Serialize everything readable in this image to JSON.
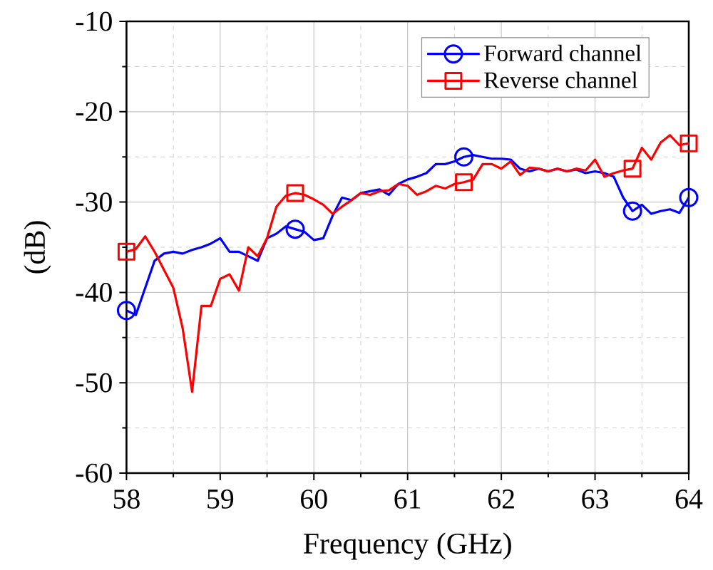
{
  "chart_data": {
    "type": "line",
    "xlabel": "Frequency (GHz)",
    "ylabel": "(dB)",
    "xlim": [
      58,
      64
    ],
    "ylim": [
      -60,
      -10
    ],
    "xticks": [
      58,
      59,
      60,
      61,
      62,
      63,
      64
    ],
    "yticks": [
      -60,
      -50,
      -40,
      -30,
      -20,
      -10
    ],
    "grid": true,
    "legend": "top right",
    "line_style": "solid",
    "x": [
      58.0,
      58.1,
      58.2,
      58.3,
      58.4,
      58.5,
      58.6,
      58.7,
      58.8,
      58.9,
      59.0,
      59.1,
      59.2,
      59.3,
      59.4,
      59.5,
      59.6,
      59.7,
      59.8,
      59.9,
      60.0,
      60.1,
      60.2,
      60.3,
      60.4,
      60.5,
      60.6,
      60.7,
      60.8,
      60.9,
      61.0,
      61.1,
      61.2,
      61.3,
      61.4,
      61.5,
      61.6,
      61.7,
      61.8,
      61.9,
      62.0,
      62.1,
      62.2,
      62.3,
      62.4,
      62.5,
      62.6,
      62.7,
      62.8,
      62.9,
      63.0,
      63.1,
      63.2,
      63.3,
      63.4,
      63.5,
      63.6,
      63.7,
      63.8,
      63.9,
      64.0
    ],
    "series": [
      {
        "name": "Forward channel",
        "color": "#0000ff",
        "values": [
          -42,
          -42.5,
          -39.5,
          -36.5,
          -35.7,
          -35.5,
          -35.7,
          -35.3,
          -35,
          -34.6,
          -34,
          -35.5,
          -35.5,
          -36,
          -36.5,
          -34,
          -33.5,
          -32.7,
          -33,
          -33.3,
          -34.2,
          -34,
          -31.5,
          -29.5,
          -29.8,
          -29,
          -28.8,
          -28.6,
          -29.2,
          -28,
          -27.5,
          -27.2,
          -26.8,
          -25.8,
          -25.8,
          -25.5,
          -25,
          -24.8,
          -25,
          -25.2,
          -25.2,
          -25.3,
          -26.3,
          -26.6,
          -26.3,
          -26.6,
          -26.3,
          -26.6,
          -26.4,
          -26.8,
          -26.6,
          -26.8,
          -27.2,
          -29.5,
          -31,
          -30.3,
          -31.3,
          -31,
          -30.8,
          -31.2,
          -29.5
        ]
      },
      {
        "type": "scatter",
        "color": "#0000ff",
        "marker": "circle",
        "x": [
          58.0,
          59.8,
          61.6,
          63.4,
          64.0
        ],
        "values": [
          -42,
          -33,
          -25,
          -31,
          -29.5
        ]
      },
      {
        "name": "Reverse channel",
        "color": "#ff0000",
        "values": [
          -35.5,
          -35.2,
          -33.8,
          -35.5,
          -37.5,
          -39.5,
          -44,
          -51,
          -41.5,
          -41.5,
          -38.5,
          -38,
          -39.8,
          -35,
          -36,
          -34,
          -30.5,
          -29.3,
          -29,
          -29.2,
          -29.7,
          -30.3,
          -31.3,
          -30.5,
          -29.8,
          -29,
          -29.2,
          -28.8,
          -28.7,
          -28,
          -28.2,
          -29.2,
          -28.8,
          -28.2,
          -28.5,
          -28,
          -27.8,
          -27.5,
          -25.8,
          -25.8,
          -26.3,
          -25.5,
          -27,
          -26.2,
          -26.3,
          -26.6,
          -26.3,
          -26.6,
          -26.3,
          -26.5,
          -25.3,
          -27.2,
          -26.8,
          -26.5,
          -26.3,
          -24,
          -25.3,
          -23.4,
          -22.6,
          -23.7,
          -23.5
        ]
      },
      {
        "type": "scatter",
        "color": "#ff0000",
        "marker": "square",
        "x": [
          58.0,
          59.8,
          61.6,
          63.4,
          64.0
        ],
        "values": [
          -35.5,
          -29,
          -27.8,
          -26.3,
          -23.5
        ]
      }
    ]
  }
}
